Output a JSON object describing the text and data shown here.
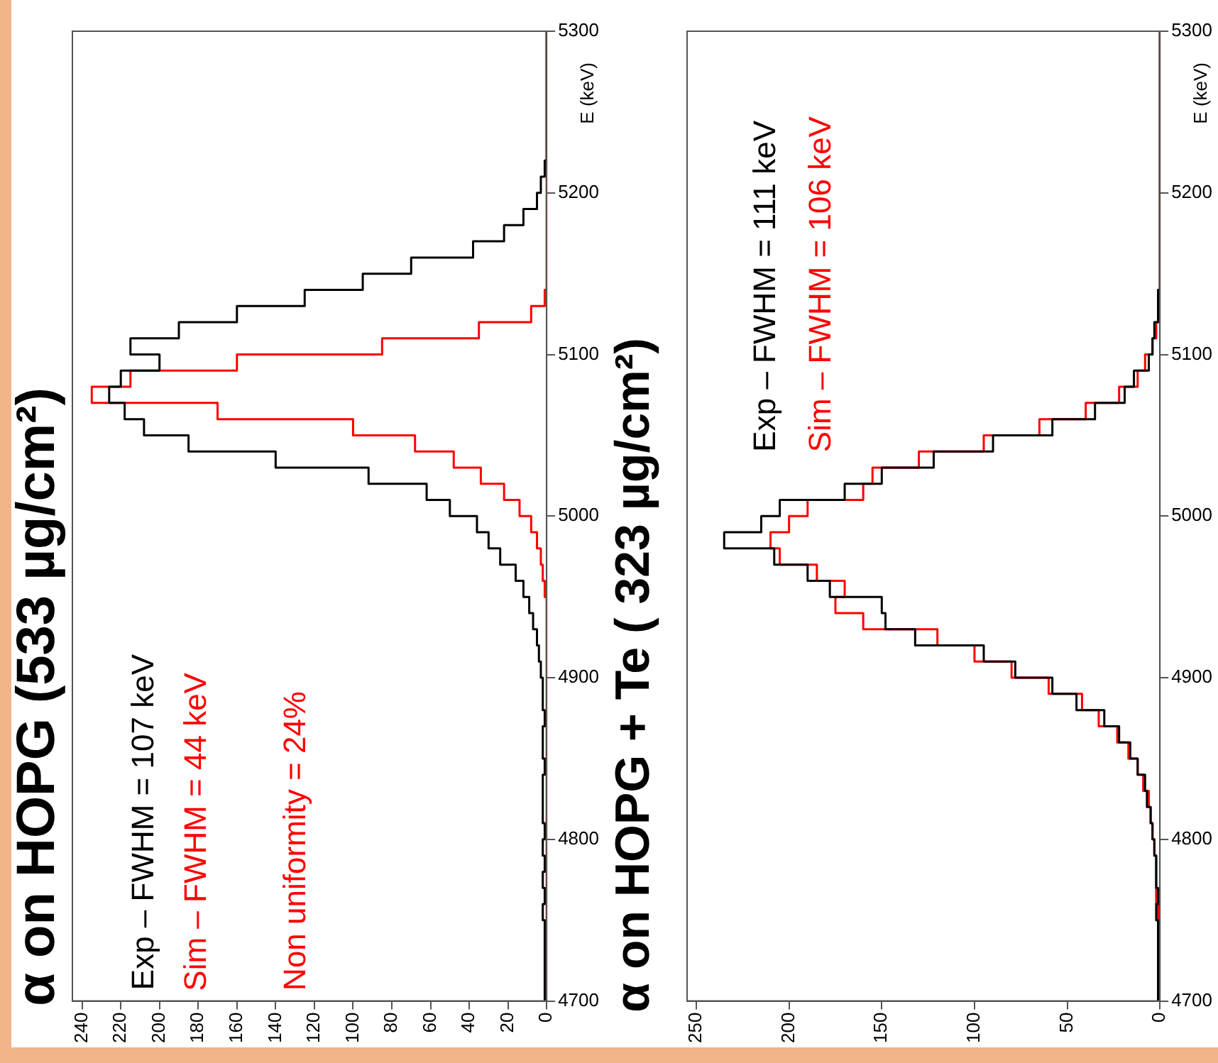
{
  "chart_data": [
    {
      "type": "histogram",
      "orientation": "horizontal",
      "title": "α on HOPG (533 µg/cm²)",
      "ylabel": "E (keV)",
      "annotations": [
        "Exp – FWHM = 107 keV",
        "Sim – FWHM = 44 keV",
        "Non uniformity = 24%"
      ],
      "bins": [
        4700,
        4710,
        4720,
        4730,
        4740,
        4750,
        4760,
        4770,
        4780,
        4790,
        4800,
        4810,
        4820,
        4830,
        4840,
        4850,
        4860,
        4870,
        4880,
        4890,
        4900,
        4910,
        4920,
        4930,
        4940,
        4950,
        4960,
        4970,
        4980,
        4990,
        5000,
        5010,
        5020,
        5030,
        5040,
        5050,
        5060,
        5070,
        5080,
        5090,
        5100,
        5110,
        5120,
        5130,
        5140,
        5150,
        5160,
        5170,
        5180,
        5190,
        5200,
        5210,
        5220,
        5230,
        5240,
        5250,
        5260,
        5270,
        5280,
        5290,
        5300
      ],
      "series": [
        {
          "color": "#000000",
          "values": [
            1,
            1,
            1,
            1,
            1,
            2,
            1,
            2,
            1,
            2,
            1,
            2,
            2,
            2,
            1,
            2,
            2,
            1,
            2,
            2,
            3,
            4,
            5,
            7,
            9,
            12,
            16,
            24,
            30,
            36,
            50,
            62,
            92,
            140,
            185,
            208,
            218,
            226,
            220,
            200,
            215,
            190,
            160,
            125,
            95,
            70,
            38,
            22,
            12,
            5,
            3,
            1,
            0,
            0,
            0,
            0,
            0,
            0,
            0,
            0
          ]
        },
        {
          "color": "#ff0000",
          "values": [
            0,
            0,
            0,
            0,
            0,
            0,
            0,
            0,
            0,
            0,
            0,
            0,
            0,
            0,
            0,
            0,
            0,
            0,
            0,
            0,
            0,
            0,
            0,
            0,
            0,
            1,
            2,
            3,
            5,
            8,
            14,
            22,
            34,
            48,
            68,
            100,
            170,
            235,
            215,
            160,
            85,
            35,
            8,
            1,
            0,
            0,
            0,
            0,
            0,
            0,
            0,
            0,
            0,
            0,
            0,
            0,
            0,
            0,
            0,
            0
          ]
        }
      ],
      "ylim": [
        4700,
        5300
      ],
      "yticks": [
        4700,
        4800,
        4900,
        5000,
        5100,
        5200,
        5300
      ],
      "xlim": [
        245,
        0
      ],
      "xticks": [
        0,
        20,
        40,
        60,
        80,
        100,
        120,
        140,
        160,
        180,
        200,
        220,
        240
      ]
    },
    {
      "type": "histogram",
      "orientation": "horizontal",
      "title": "α on HOPG + Te ( 323 µg/cm²)",
      "ylabel": "E (keV)",
      "annotations": [
        "Exp – FWHM = 111 keV",
        "Sim – FWHM = 106 keV"
      ],
      "bins": [
        4700,
        4710,
        4720,
        4730,
        4740,
        4750,
        4760,
        4770,
        4780,
        4790,
        4800,
        4810,
        4820,
        4830,
        4840,
        4850,
        4860,
        4870,
        4880,
        4890,
        4900,
        4910,
        4920,
        4930,
        4940,
        4950,
        4960,
        4970,
        4980,
        4990,
        5000,
        5010,
        5020,
        5030,
        5040,
        5050,
        5060,
        5070,
        5080,
        5090,
        5100,
        5110,
        5120,
        5130,
        5140,
        5150,
        5160,
        5170,
        5180,
        5190,
        5200,
        5210,
        5220,
        5230,
        5240,
        5250,
        5260,
        5270,
        5280,
        5290,
        5300
      ],
      "series": [
        {
          "color": "#000000",
          "values": [
            1,
            1,
            1,
            1,
            1,
            2,
            1,
            2,
            2,
            3,
            4,
            5,
            7,
            8,
            12,
            16,
            22,
            30,
            45,
            58,
            78,
            95,
            132,
            148,
            150,
            178,
            190,
            208,
            235,
            215,
            205,
            170,
            150,
            122,
            90,
            58,
            35,
            19,
            14,
            6,
            4,
            3,
            1,
            1,
            0,
            0,
            0,
            0,
            0,
            0,
            0,
            0,
            0,
            0,
            0,
            0,
            0,
            0,
            0,
            0
          ]
        },
        {
          "color": "#ff0000",
          "values": [
            1,
            1,
            1,
            1,
            1,
            1,
            2,
            2,
            2,
            3,
            4,
            5,
            6,
            9,
            12,
            17,
            23,
            33,
            42,
            60,
            80,
            100,
            120,
            160,
            175,
            170,
            185,
            205,
            210,
            200,
            190,
            160,
            155,
            130,
            95,
            65,
            40,
            22,
            12,
            8,
            4,
            2,
            1,
            1,
            0,
            0,
            0,
            0,
            0,
            0,
            0,
            0,
            0,
            0,
            0,
            0,
            0,
            0,
            0,
            0
          ]
        }
      ],
      "ylim": [
        4700,
        5300
      ],
      "yticks": [
        4700,
        4800,
        4900,
        5000,
        5100,
        5200,
        5300
      ],
      "xlim": [
        255,
        0
      ],
      "xticks": [
        0,
        50,
        100,
        150,
        200,
        250
      ]
    }
  ]
}
